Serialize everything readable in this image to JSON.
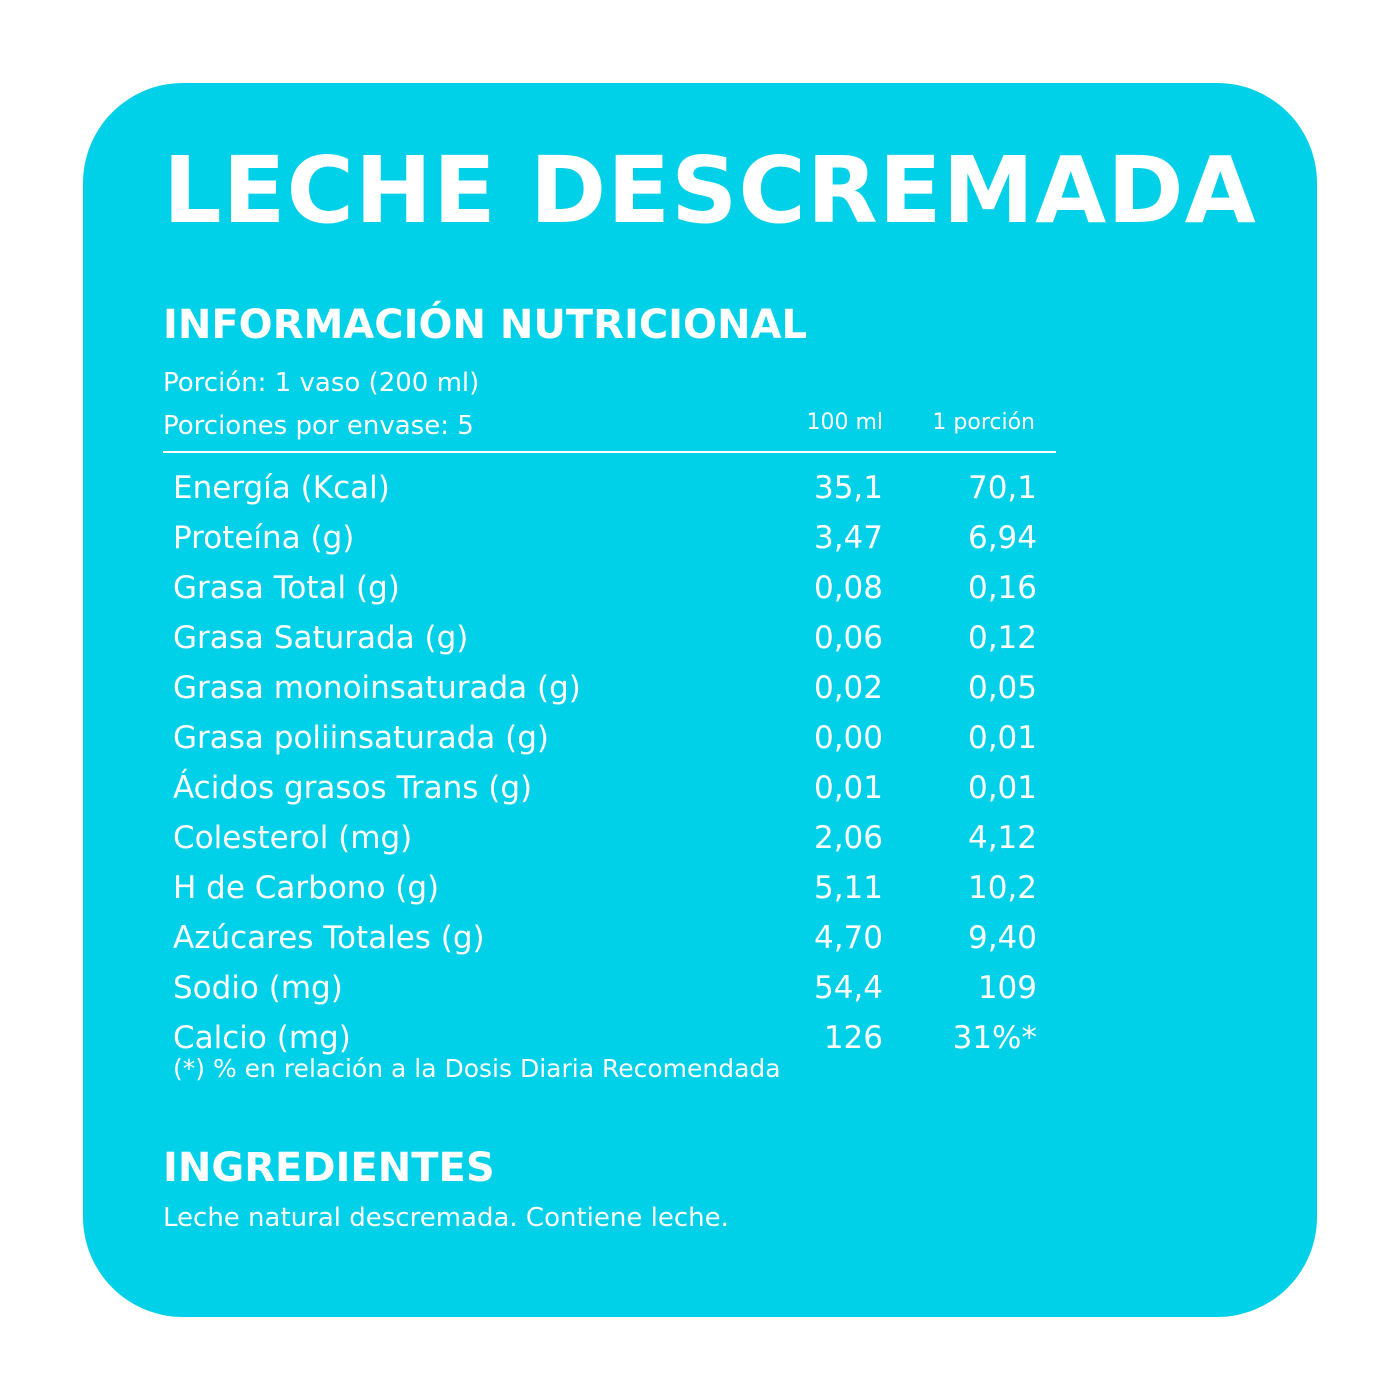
{
  "title": "LECHE DESCREMADA",
  "nutrition": {
    "heading": "INFORMACIÓN NUTRICIONAL",
    "serving": "Porción: 1 vaso (200 ml)",
    "servings_per_container": "Porciones por envase: 5",
    "col_100ml": "100 ml",
    "col_portion": "1 porción",
    "rows": [
      {
        "name": "Energía (Kcal)",
        "per100": "35,1",
        "perPortion": "70,1"
      },
      {
        "name": "Proteína (g)",
        "per100": "3,47",
        "perPortion": "6,94"
      },
      {
        "name": "Grasa Total (g)",
        "per100": "0,08",
        "perPortion": "0,16"
      },
      {
        "name": "Grasa Saturada (g)",
        "per100": "0,06",
        "perPortion": "0,12"
      },
      {
        "name": "Grasa monoinsaturada (g)",
        "per100": "0,02",
        "perPortion": "0,05"
      },
      {
        "name": "Grasa poliinsaturada (g)",
        "per100": "0,00",
        "perPortion": "0,01"
      },
      {
        "name": "Ácidos grasos Trans (g)",
        "per100": "0,01",
        "perPortion": "0,01"
      },
      {
        "name": "Colesterol (mg)",
        "per100": "2,06",
        "perPortion": "4,12"
      },
      {
        "name": "H de Carbono (g)",
        "per100": "5,11",
        "perPortion": "10,2"
      },
      {
        "name": "Azúcares Totales (g)",
        "per100": "4,70",
        "perPortion": "9,40"
      },
      {
        "name": "Sodio (mg)",
        "per100": "54,4",
        "perPortion": "109"
      },
      {
        "name": "Calcio (mg)",
        "per100": "126",
        "perPortion": "31%*"
      }
    ],
    "footnote": "(*) % en relación a la Dosis Diaria Recomendada"
  },
  "ingredients": {
    "heading": "INGREDIENTES",
    "text": "Leche natural descremada. Contiene leche."
  },
  "colors": {
    "panel": "#00d0e8",
    "text": "#ffffff",
    "background": "#ffffff"
  }
}
